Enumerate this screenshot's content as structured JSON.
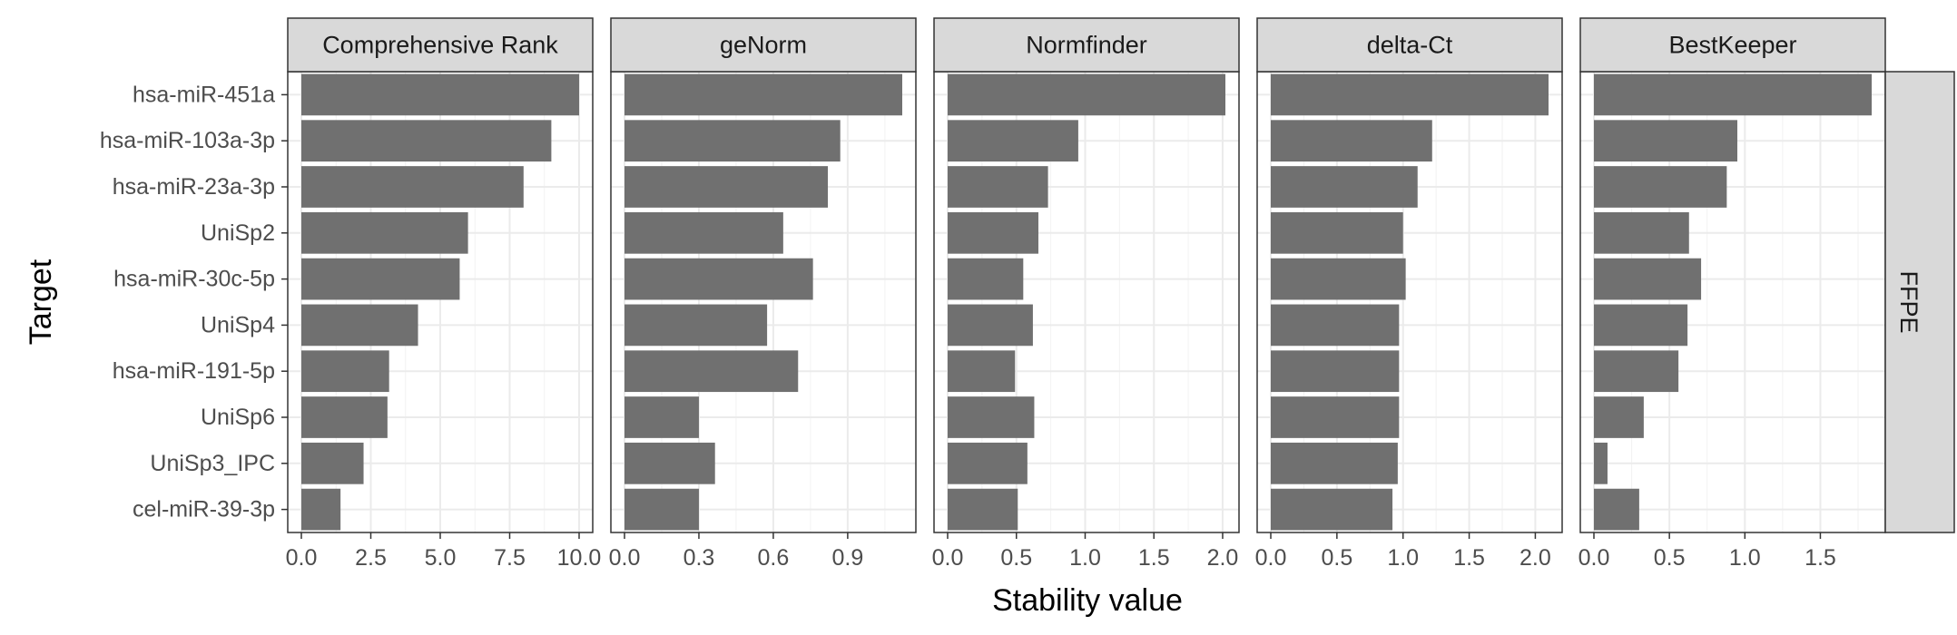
{
  "chart_data": {
    "type": "bar",
    "orientation": "horizontal",
    "xlabel": "Stability value",
    "ylabel": "Target",
    "row_strip": "FFPE",
    "categories": [
      "hsa-miR-451a",
      "hsa-miR-103a-3p",
      "hsa-miR-23a-3p",
      "UniSp2",
      "hsa-miR-30c-5p",
      "UniSp4",
      "hsa-miR-191-5p",
      "UniSp6",
      "UniSp3_IPC",
      "cel-miR-39-3p"
    ],
    "grid": true,
    "bar_color": "#707070",
    "panels": [
      {
        "name": "Comprehensive Rank",
        "xlim": [
          0,
          10
        ],
        "ticks": [
          0,
          2.5,
          5,
          7.5,
          10
        ],
        "tick_labels": [
          "0.0",
          "2.5",
          "5.0",
          "7.5",
          "10.0"
        ],
        "values": [
          10,
          9,
          8,
          6,
          5.7,
          4.2,
          3.16,
          3.1,
          2.24,
          1.41
        ]
      },
      {
        "name": "geNorm",
        "xlim": [
          0,
          1.12
        ],
        "ticks": [
          0,
          0.3,
          0.6,
          0.9
        ],
        "tick_labels": [
          "0.0",
          "0.3",
          "0.6",
          "0.9"
        ],
        "values": [
          1.12,
          0.87,
          0.82,
          0.64,
          0.76,
          0.575,
          0.7,
          0.3,
          0.365,
          0.3
        ]
      },
      {
        "name": "Normfinder",
        "xlim": [
          0,
          2.02
        ],
        "ticks": [
          0,
          0.5,
          1,
          1.5,
          2
        ],
        "tick_labels": [
          "0.0",
          "0.5",
          "1.0",
          "1.5",
          "2.0"
        ],
        "values": [
          2.02,
          0.95,
          0.73,
          0.66,
          0.55,
          0.62,
          0.49,
          0.63,
          0.58,
          0.51
        ]
      },
      {
        "name": "delta-Ct",
        "xlim": [
          0,
          2.1
        ],
        "ticks": [
          0,
          0.5,
          1,
          1.5,
          2
        ],
        "tick_labels": [
          "0.0",
          "0.5",
          "1.0",
          "1.5",
          "2.0"
        ],
        "values": [
          2.1,
          1.22,
          1.11,
          1.0,
          1.02,
          0.97,
          0.97,
          0.97,
          0.96,
          0.92
        ]
      },
      {
        "name": "BestKeeper",
        "xlim": [
          0,
          1.84
        ],
        "ticks": [
          0,
          0.5,
          1,
          1.5
        ],
        "tick_labels": [
          "0.0",
          "0.5",
          "1.0",
          "1.5"
        ],
        "values": [
          1.84,
          0.95,
          0.88,
          0.63,
          0.71,
          0.62,
          0.56,
          0.33,
          0.09,
          0.3
        ]
      }
    ]
  }
}
